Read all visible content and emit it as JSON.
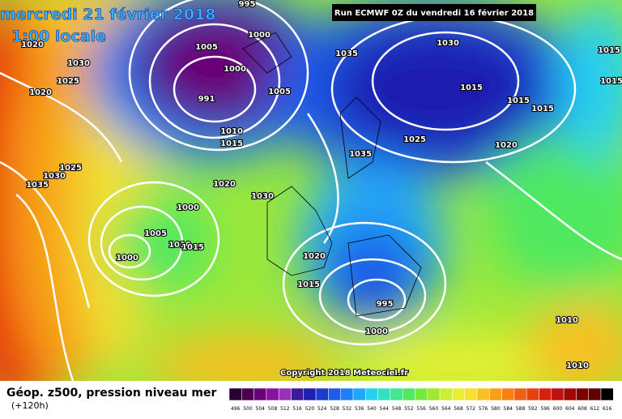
{
  "header": {
    "date": "mercredi 21 février 2018",
    "time": "1:00 locale",
    "run": "Run ECMWF 0Z du vendredi 16 février 2018"
  },
  "isobar_labels": [
    "995",
    "1000",
    "1005",
    "1000",
    "991",
    "1005",
    "1010",
    "1015",
    "1030",
    "1025",
    "1020",
    "1025",
    "1030",
    "1035",
    "1020",
    "1030",
    "1000",
    "1005",
    "1010",
    "1015",
    "1000",
    "1035",
    "1030",
    "1015",
    "1015",
    "1015",
    "1025",
    "1020",
    "1035",
    "1015",
    "1015",
    "1020",
    "1015",
    "995",
    "1000",
    "1010",
    "1010",
    "1020"
  ],
  "copyright": "Copyright 2018 Meteociel.fr",
  "footer": {
    "title": "Géop. z500, pression niveau mer",
    "lead": "(+120h)"
  },
  "legend": {
    "values": [
      "496",
      "500",
      "504",
      "508",
      "512",
      "516",
      "520",
      "524",
      "528",
      "532",
      "536",
      "540",
      "544",
      "548",
      "552",
      "556",
      "560",
      "564",
      "568",
      "572",
      "576",
      "580",
      "584",
      "588",
      "592",
      "596",
      "600",
      "604",
      "608",
      "612",
      "616"
    ],
    "colors": [
      "#2a0030",
      "#4b0050",
      "#6a0078",
      "#8a10a0",
      "#9a30b8",
      "#3a1a9a",
      "#1f1fb0",
      "#1c3ad0",
      "#1f5ae8",
      "#1f80f5",
      "#20a8f8",
      "#28d0f0",
      "#30e0c0",
      "#40e890",
      "#50e860",
      "#78e840",
      "#a0e830",
      "#c8f030",
      "#e8f030",
      "#f8e030",
      "#f8c020",
      "#f8a018",
      "#f88010",
      "#f06010",
      "#e84010",
      "#d82010",
      "#c01010",
      "#a00808",
      "#800000",
      "#600000",
      "#000000"
    ]
  }
}
